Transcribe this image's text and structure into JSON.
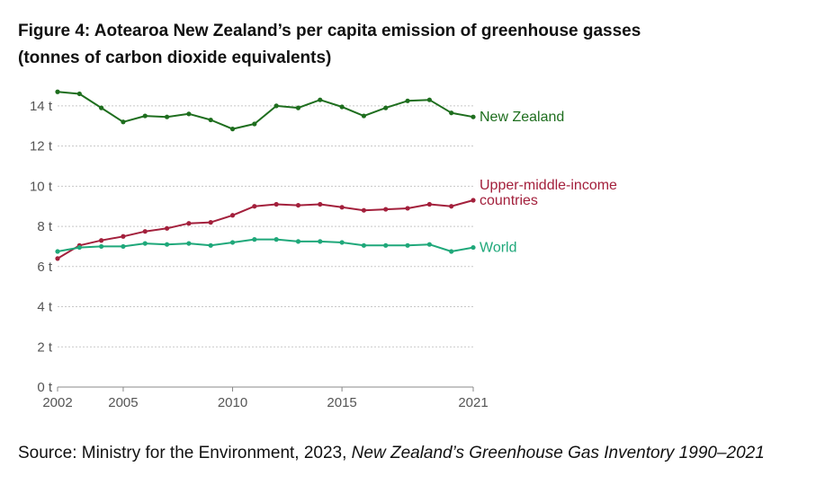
{
  "figure": {
    "title_line1": "Figure 4: Aotearoa New Zealand’s per capita emission of greenhouse gasses",
    "title_line2": "(tonnes of carbon dioxide equivalents)"
  },
  "source": {
    "prefix": "Source: Ministry for the Environment, 2023,",
    "title_italic": "New Zealand’s Greenhouse Gas Inventory 1990–2021"
  },
  "chart_data": {
    "type": "line",
    "title": "Aotearoa New Zealand’s per capita emission of greenhouse gasses",
    "ylabel": "tonnes of carbon dioxide equivalents",
    "xlabel": "",
    "x": [
      2002,
      2003,
      2004,
      2005,
      2006,
      2007,
      2008,
      2009,
      2010,
      2011,
      2012,
      2013,
      2014,
      2015,
      2016,
      2017,
      2018,
      2019,
      2020,
      2021
    ],
    "xticks": [
      2002,
      2005,
      2010,
      2015,
      2021
    ],
    "xtick_labels": [
      "2002",
      "2005",
      "2010",
      "2015",
      "2021"
    ],
    "ylim": [
      0,
      14
    ],
    "yticks": [
      0,
      2,
      4,
      6,
      8,
      10,
      12,
      14
    ],
    "ytick_labels": [
      "0 t",
      "2 t",
      "4 t",
      "6 t",
      "8 t",
      "10 t",
      "12 t",
      "14 t"
    ],
    "grid": true,
    "series": [
      {
        "name": "New Zealand",
        "label_lines": [
          "New Zealand"
        ],
        "color": "#1e6e1e",
        "values": [
          14.7,
          14.6,
          13.9,
          13.2,
          13.5,
          13.45,
          13.6,
          13.3,
          12.85,
          13.1,
          14.0,
          13.9,
          14.3,
          13.95,
          13.5,
          13.9,
          14.25,
          14.3,
          13.65,
          13.45
        ]
      },
      {
        "name": "Upper-middle-income countries",
        "label_lines": [
          "Upper-middle-income",
          "countries"
        ],
        "color": "#a3203c",
        "values": [
          6.4,
          7.05,
          7.3,
          7.5,
          7.75,
          7.9,
          8.15,
          8.2,
          8.55,
          9.0,
          9.1,
          9.05,
          9.1,
          8.95,
          8.8,
          8.85,
          8.9,
          9.1,
          9.0,
          9.3
        ]
      },
      {
        "name": "World",
        "label_lines": [
          "World"
        ],
        "color": "#1fa87a",
        "values": [
          6.75,
          6.95,
          7.0,
          7.0,
          7.15,
          7.1,
          7.15,
          7.05,
          7.2,
          7.35,
          7.35,
          7.25,
          7.25,
          7.2,
          7.05,
          7.05,
          7.05,
          7.1,
          6.75,
          6.95
        ]
      }
    ]
  }
}
